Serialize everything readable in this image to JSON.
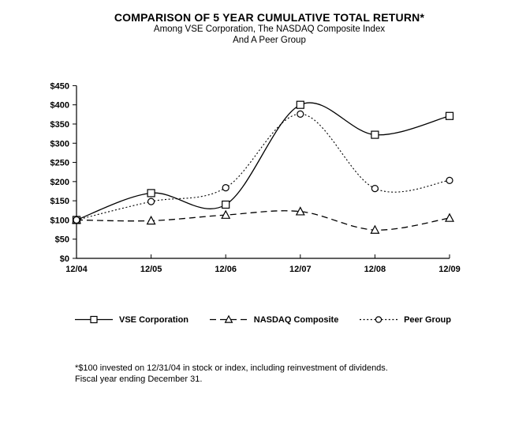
{
  "title": "COMPARISON OF 5 YEAR CUMULATIVE TOTAL RETURN*",
  "subtitle_line1": "Among VSE Corporation, The NASDAQ Composite Index",
  "subtitle_line2": "And A Peer Group",
  "footnote_line1": "*$100 invested on 12/31/04 in stock or index, including reinvestment of dividends.",
  "footnote_line2": "Fiscal year ending December 31.",
  "colors": {
    "background": "#ffffff",
    "line": "#000000",
    "text": "#000000",
    "marker_fill": "#ffffff"
  },
  "chart_data": {
    "type": "line",
    "title": "COMPARISON OF 5 YEAR CUMULATIVE TOTAL RETURN*",
    "categories": [
      "12/04",
      "12/05",
      "12/06",
      "12/07",
      "12/08",
      "12/09"
    ],
    "series": [
      {
        "name": "VSE Corporation",
        "marker": "square",
        "line_style": "solid",
        "values": [
          100,
          170,
          140,
          400,
          322,
          371
        ]
      },
      {
        "name": "NASDAQ Composite",
        "marker": "triangle",
        "line_style": "dashed",
        "values": [
          100,
          98,
          113,
          122,
          74,
          105
        ]
      },
      {
        "name": "Peer Group",
        "marker": "circle",
        "line_style": "dotted",
        "values": [
          100,
          148,
          184,
          376,
          182,
          203
        ]
      }
    ],
    "xlabel": "",
    "ylabel": "",
    "ylim": [
      0,
      450
    ],
    "y_tick_step": 50,
    "y_tick_labels": [
      "$0",
      "$50",
      "$100",
      "$150",
      "$200",
      "$250",
      "$300",
      "$350",
      "$400",
      "$450"
    ],
    "x_tick_labels": [
      "12/04",
      "12/05",
      "12/06",
      "12/07",
      "12/08",
      "12/09"
    ],
    "grid": "off",
    "smoothed": true,
    "legend_position": "bottom"
  }
}
